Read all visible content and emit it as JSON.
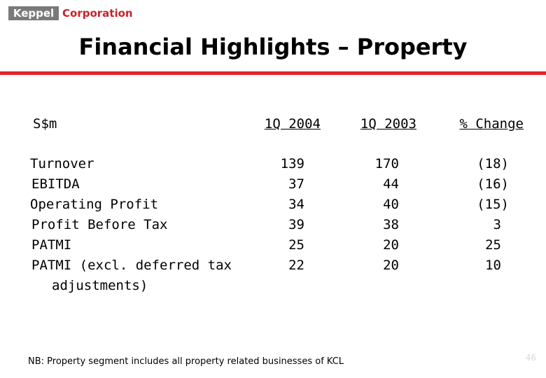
{
  "logo": {
    "brand": "Keppel",
    "company": "Corporation"
  },
  "title": "Financial Highlights – Property",
  "table": {
    "label_header": "S$m",
    "columns": [
      "1Q 2004",
      "1Q 2003",
      "% Change"
    ],
    "rows": [
      {
        "label": "Turnover",
        "values": [
          "139",
          "170",
          "(18)"
        ]
      },
      {
        "label": "EBITDA",
        "values": [
          "37",
          "44",
          "(16)"
        ]
      },
      {
        "label": "Operating Profit",
        "values": [
          "34",
          "40",
          "(15)"
        ]
      },
      {
        "label": "Profit Before Tax",
        "values": [
          "39",
          "38",
          "3"
        ]
      },
      {
        "label": "PATMI",
        "values": [
          "25",
          "20",
          "25"
        ]
      },
      {
        "label": "PATMI (excl. deferred tax",
        "label_line2": "adjustments)",
        "values": [
          "22",
          "20",
          "10"
        ]
      }
    ]
  },
  "note": "NB: Property segment includes all property related businesses of KCL",
  "page_number": "46",
  "colors": {
    "accent": "#e3232b",
    "logo_gray": "#7a7a7a",
    "brand_red": "#d01f28"
  }
}
